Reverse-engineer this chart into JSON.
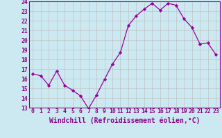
{
  "x": [
    0,
    1,
    2,
    3,
    4,
    5,
    6,
    7,
    8,
    9,
    10,
    11,
    12,
    13,
    14,
    15,
    16,
    17,
    18,
    19,
    20,
    21,
    22,
    23
  ],
  "y": [
    16.5,
    16.3,
    15.3,
    16.8,
    15.3,
    14.8,
    14.2,
    12.9,
    14.3,
    15.9,
    17.5,
    18.7,
    21.5,
    22.5,
    23.2,
    23.8,
    23.1,
    23.8,
    23.6,
    22.2,
    21.3,
    19.6,
    19.7,
    18.5
  ],
  "line_color": "#990099",
  "marker": "D",
  "marker_size": 2.2,
  "bg_color": "#cce8f0",
  "grid_color": "#bbbbbb",
  "xlabel": "Windchill (Refroidissement éolien,°C)",
  "ylim": [
    13,
    24
  ],
  "xlim": [
    -0.5,
    23.5
  ],
  "yticks": [
    13,
    14,
    15,
    16,
    17,
    18,
    19,
    20,
    21,
    22,
    23,
    24
  ],
  "xticks": [
    0,
    1,
    2,
    3,
    4,
    5,
    6,
    7,
    8,
    9,
    10,
    11,
    12,
    13,
    14,
    15,
    16,
    17,
    18,
    19,
    20,
    21,
    22,
    23
  ],
  "tick_color": "#880088",
  "label_color": "#880088",
  "tick_fontsize": 5.8,
  "xlabel_fontsize": 7.0,
  "spine_color": "#880088"
}
